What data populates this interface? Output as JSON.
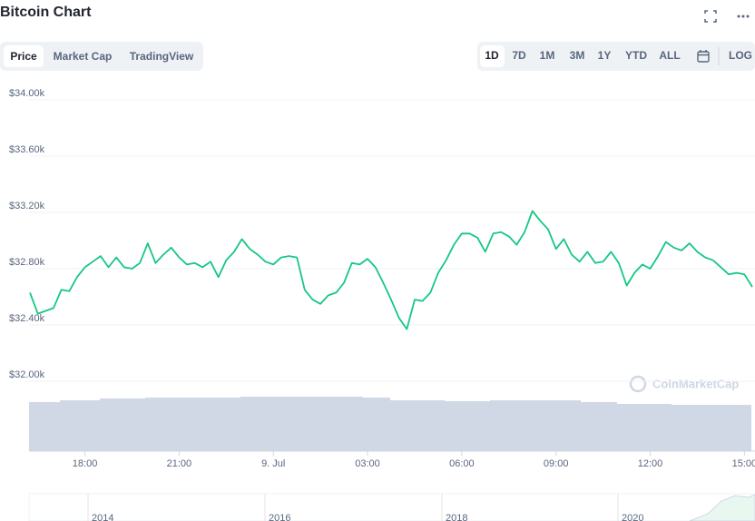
{
  "chart_data": {
    "type": "line",
    "title": "Bitcoin Chart",
    "x": [
      16.25,
      16.5,
      16.75,
      17,
      17.25,
      17.5,
      17.75,
      18,
      18.25,
      18.5,
      18.75,
      19,
      19.25,
      19.5,
      19.75,
      20,
      20.25,
      20.5,
      20.75,
      21,
      21.25,
      21.5,
      21.75,
      22,
      22.25,
      22.5,
      22.75,
      23,
      23.25,
      23.5,
      23.75,
      24,
      24.25,
      24.5,
      24.75,
      25,
      25.25,
      25.5,
      25.75,
      26,
      26.25,
      26.5,
      26.75,
      27,
      27.25,
      27.5,
      27.75,
      28,
      28.25,
      28.5,
      28.75,
      29,
      29.25,
      29.5,
      29.75,
      30,
      30.25,
      30.5,
      30.75,
      31,
      31.25,
      31.5,
      31.75,
      32,
      32.25,
      32.5,
      32.75,
      33,
      33.25,
      33.5,
      33.75,
      34,
      34.25,
      34.5,
      34.75,
      35,
      35.25,
      35.5,
      35.75,
      36,
      36.25,
      36.5,
      36.75,
      37,
      37.25,
      37.5,
      37.75,
      38,
      38.25,
      38.5,
      38.75,
      39,
      39.25
    ],
    "series": [
      {
        "name": "Price",
        "color": "#16c784",
        "values": [
          32630,
          32480,
          32500,
          32520,
          32650,
          32640,
          32740,
          32810,
          32850,
          32890,
          32810,
          32880,
          32810,
          32800,
          32840,
          32980,
          32840,
          32900,
          32950,
          32880,
          32830,
          32840,
          32810,
          32850,
          32740,
          32860,
          32920,
          33010,
          32940,
          32900,
          32850,
          32830,
          32880,
          32890,
          32880,
          32650,
          32580,
          32550,
          32610,
          32630,
          32700,
          32840,
          32830,
          32870,
          32810,
          32700,
          32580,
          32450,
          32370,
          32580,
          32570,
          32630,
          32770,
          32860,
          32970,
          33050,
          33050,
          33020,
          32920,
          33050,
          33060,
          33030,
          32970,
          33060,
          33210,
          33140,
          33080,
          32940,
          33010,
          32900,
          32850,
          32920,
          32840,
          32850,
          32920,
          32840,
          32680,
          32770,
          32830,
          32800,
          32890,
          32990,
          32950,
          32930,
          32980,
          32920,
          32880,
          32860,
          32810,
          32760,
          32770,
          32760,
          32670
        ]
      }
    ],
    "xlim": [
      16.25,
      39.25
    ],
    "xticks": [
      {
        "value": 18,
        "label": "18:00"
      },
      {
        "value": 21,
        "label": "21:00"
      },
      {
        "value": 24,
        "label": "9. Jul"
      },
      {
        "value": 27,
        "label": "03:00"
      },
      {
        "value": 30,
        "label": "06:00"
      },
      {
        "value": 33,
        "label": "09:00"
      },
      {
        "value": 36,
        "label": "12:00"
      },
      {
        "value": 39,
        "label": "15:00"
      }
    ],
    "ylim": [
      32000,
      34000
    ],
    "yticks": [
      {
        "value": 32000,
        "label": "$32.00k"
      },
      {
        "value": 32400,
        "label": "$32.40k"
      },
      {
        "value": 32800,
        "label": "$32.80k"
      },
      {
        "value": 33200,
        "label": "$33.20k"
      },
      {
        "value": 33600,
        "label": "$33.60k"
      },
      {
        "value": 34000,
        "label": "$34.00k"
      }
    ],
    "grid": true
  },
  "tabs": [
    "Price",
    "Market Cap",
    "TradingView"
  ],
  "ranges": [
    "1D",
    "7D",
    "1M",
    "3M",
    "1Y",
    "YTD",
    "ALL"
  ],
  "scale_button": "LOG",
  "watermark": "CoinMarketCap",
  "navigator_labels": [
    "2014",
    "2016",
    "2018",
    "2020"
  ]
}
